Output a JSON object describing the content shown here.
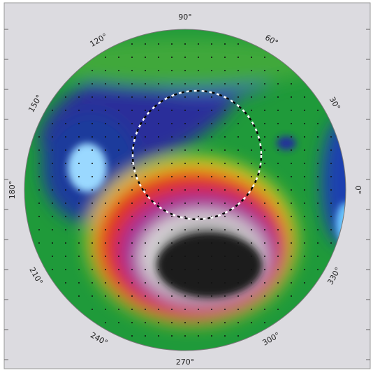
{
  "angle_labels": [
    "0°",
    "30°",
    "60°",
    "90°",
    "120°",
    "150°",
    "180°",
    "210°",
    "240°",
    "270°",
    "300°",
    "330°"
  ]
}
